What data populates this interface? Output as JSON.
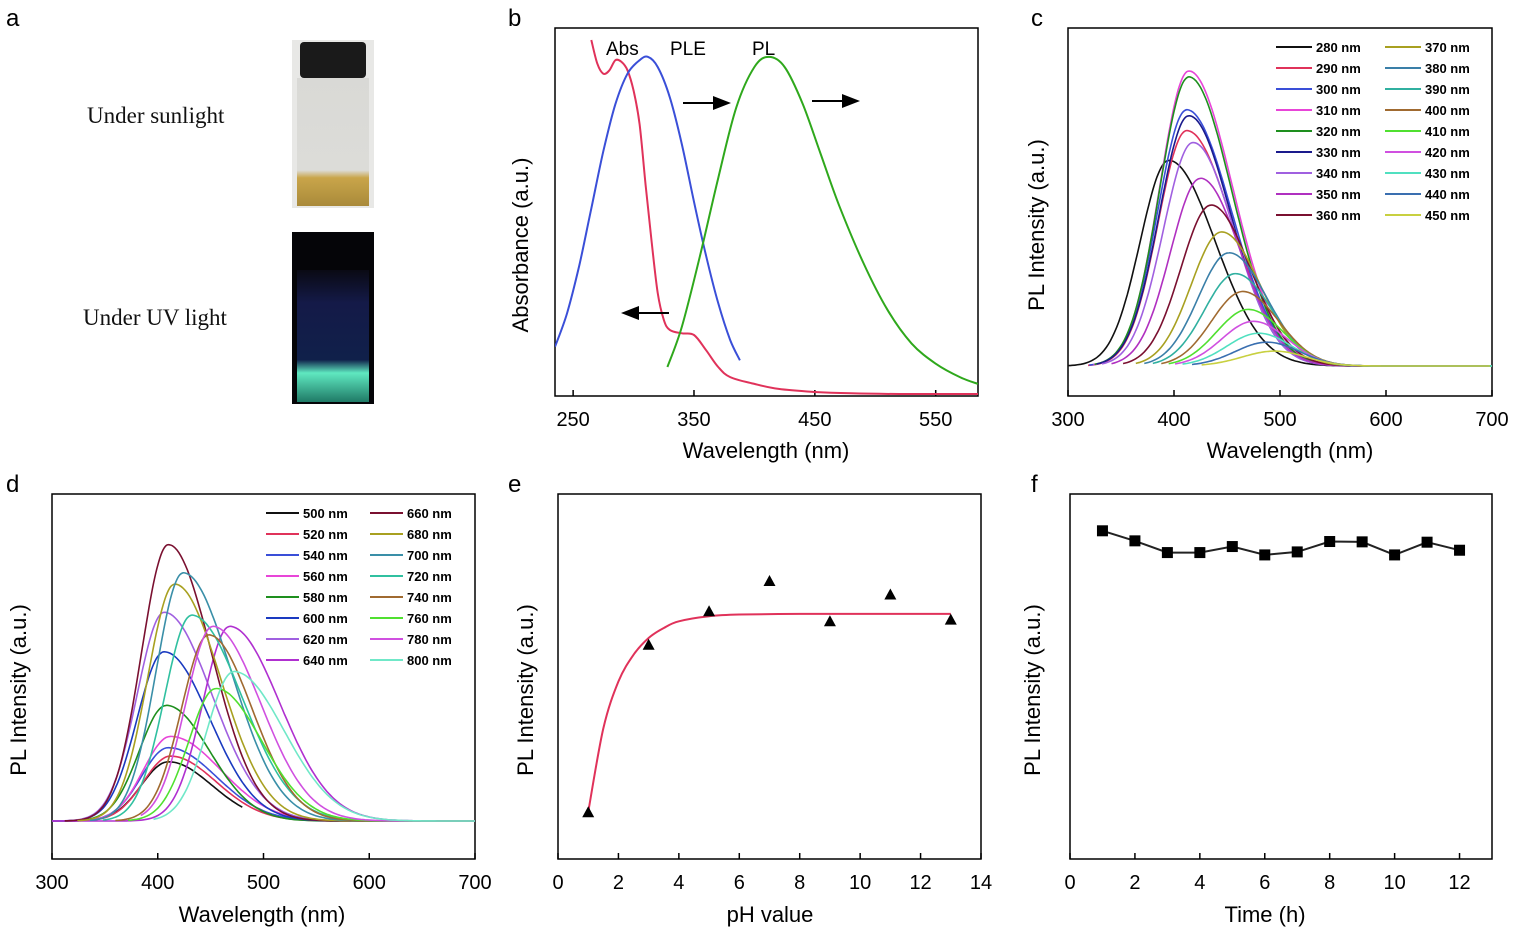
{
  "panel_labels": [
    "a",
    "b",
    "c",
    "d",
    "e",
    "f"
  ],
  "panel_a": {
    "sunlight_label": "Under sunlight",
    "uv_label": "Under UV light"
  },
  "chart_data": [
    {
      "id": "b",
      "type": "line",
      "title": "",
      "xlabel": "Wavelength (nm)",
      "ylabel": "Absorbance (a.u.)",
      "xlim": [
        235,
        585
      ],
      "ylim": [
        0,
        1.05
      ],
      "xticks": [
        250,
        350,
        450,
        550
      ],
      "annotations": [
        "Abs",
        "PLE",
        "PL"
      ],
      "series": [
        {
          "name": "Abs",
          "color": "#e0325a",
          "x": [
            265,
            270,
            275,
            280,
            285,
            290,
            295,
            300,
            305,
            310,
            315,
            320,
            325,
            330,
            340,
            350,
            360,
            370,
            380,
            400,
            420,
            450,
            480,
            520,
            585
          ],
          "y": [
            1.05,
            0.98,
            0.95,
            0.96,
            0.99,
            0.985,
            0.96,
            0.9,
            0.8,
            0.62,
            0.45,
            0.3,
            0.22,
            0.19,
            0.18,
            0.175,
            0.13,
            0.08,
            0.05,
            0.03,
            0.015,
            0.006,
            0.002,
            0.0,
            0.0
          ]
        },
        {
          "name": "PLE",
          "color": "#3a4fd8",
          "x": [
            235,
            245,
            255,
            265,
            275,
            285,
            295,
            305,
            312,
            320,
            330,
            340,
            350,
            360,
            370,
            380,
            388
          ],
          "y": [
            0.14,
            0.24,
            0.38,
            0.55,
            0.72,
            0.86,
            0.95,
            0.99,
            1.0,
            0.97,
            0.88,
            0.74,
            0.57,
            0.41,
            0.27,
            0.16,
            0.1
          ]
        },
        {
          "name": "PL",
          "color": "#2fa81c",
          "x": [
            328,
            340,
            355,
            370,
            385,
            400,
            412,
            425,
            440,
            455,
            470,
            490,
            510,
            530,
            550,
            570,
            585
          ],
          "y": [
            0.08,
            0.2,
            0.41,
            0.64,
            0.85,
            0.97,
            1.0,
            0.97,
            0.86,
            0.71,
            0.56,
            0.39,
            0.25,
            0.15,
            0.09,
            0.05,
            0.03
          ]
        }
      ]
    },
    {
      "id": "c",
      "type": "line",
      "title": "",
      "xlabel": "Wavelength (nm)",
      "ylabel": "PL Intensity (a.u.)",
      "xlim": [
        300,
        700
      ],
      "ylim": [
        0,
        1.0
      ],
      "xticks": [
        300,
        400,
        500,
        600,
        700
      ],
      "legend": "top-right",
      "series": [
        {
          "name": "280 nm",
          "color": "#111111",
          "peak": 395,
          "height": 0.69
        },
        {
          "name": "290 nm",
          "color": "#e0325a",
          "peak": 412,
          "height": 0.79
        },
        {
          "name": "300 nm",
          "color": "#3a4fd8",
          "peak": 412,
          "height": 0.86
        },
        {
          "name": "310 nm",
          "color": "#e845d8",
          "peak": 414,
          "height": 0.99
        },
        {
          "name": "320 nm",
          "color": "#1e8f1e",
          "peak": 414,
          "height": 0.97
        },
        {
          "name": "330 nm",
          "color": "#1a1a8c",
          "peak": 414,
          "height": 0.84
        },
        {
          "name": "340 nm",
          "color": "#a060e0",
          "peak": 418,
          "height": 0.75
        },
        {
          "name": "350 nm",
          "color": "#b030c0",
          "peak": 425,
          "height": 0.63
        },
        {
          "name": "360 nm",
          "color": "#7a1030",
          "peak": 435,
          "height": 0.54
        },
        {
          "name": "370 nm",
          "color": "#a8a020",
          "peak": 445,
          "height": 0.45
        },
        {
          "name": "380 nm",
          "color": "#3a7fa8",
          "peak": 452,
          "height": 0.38
        },
        {
          "name": "390 nm",
          "color": "#30b0a0",
          "peak": 458,
          "height": 0.31
        },
        {
          "name": "400 nm",
          "color": "#a06a30",
          "peak": 465,
          "height": 0.25
        },
        {
          "name": "410 nm",
          "color": "#50e030",
          "peak": 470,
          "height": 0.19
        },
        {
          "name": "420 nm",
          "color": "#d050e0",
          "peak": 475,
          "height": 0.15
        },
        {
          "name": "430 nm",
          "color": "#50e0c0",
          "peak": 480,
          "height": 0.11
        },
        {
          "name": "440 nm",
          "color": "#3a6fb0",
          "peak": 488,
          "height": 0.08
        },
        {
          "name": "450 nm",
          "color": "#c8d040",
          "peak": 495,
          "height": 0.05
        }
      ]
    },
    {
      "id": "d",
      "type": "line",
      "title": "",
      "xlabel": "Wavelength (nm)",
      "ylabel": "PL Intensity (a.u.)",
      "xlim": [
        300,
        700
      ],
      "ylim": [
        0,
        1.0
      ],
      "xticks": [
        300,
        400,
        500,
        600,
        700
      ],
      "legend": "top-right",
      "series": [
        {
          "name": "500 nm",
          "color": "#111111",
          "peak": 410,
          "height": 0.21
        },
        {
          "name": "520 nm",
          "color": "#e0325a",
          "peak": 412,
          "height": 0.23
        },
        {
          "name": "540 nm",
          "color": "#3a4fd8",
          "peak": 410,
          "height": 0.26
        },
        {
          "name": "560 nm",
          "color": "#e845d8",
          "peak": 412,
          "height": 0.3
        },
        {
          "name": "580 nm",
          "color": "#1e8f1e",
          "peak": 408,
          "height": 0.41
        },
        {
          "name": "600 nm",
          "color": "#1a3ac0",
          "peak": 406,
          "height": 0.6
        },
        {
          "name": "620 nm",
          "color": "#a060e0",
          "peak": 406,
          "height": 0.74
        },
        {
          "name": "640 nm",
          "color": "#b030d0",
          "peak": 468,
          "height": 0.69
        },
        {
          "name": "660 nm",
          "color": "#7a1030",
          "peak": 410,
          "height": 0.98
        },
        {
          "name": "680 nm",
          "color": "#a8a020",
          "peak": 416,
          "height": 0.84
        },
        {
          "name": "700 nm",
          "color": "#3a8fa8",
          "peak": 424,
          "height": 0.88
        },
        {
          "name": "720 nm",
          "color": "#30c0a0",
          "peak": 432,
          "height": 0.73
        },
        {
          "name": "740 nm",
          "color": "#a06a30",
          "peak": 448,
          "height": 0.66
        },
        {
          "name": "760 nm",
          "color": "#50e030",
          "peak": 455,
          "height": 0.47
        },
        {
          "name": "780 nm",
          "color": "#d050e0",
          "peak": 452,
          "height": 0.69
        },
        {
          "name": "800 nm",
          "color": "#70e8c8",
          "peak": 472,
          "height": 0.53
        }
      ]
    },
    {
      "id": "e",
      "type": "scatter",
      "title": "",
      "xlabel": "pH value",
      "ylabel": "PL Intensity (a.u.)",
      "xlim": [
        0,
        14
      ],
      "ylim": [
        0,
        1.0
      ],
      "xticks": [
        0,
        2,
        4,
        6,
        8,
        10,
        12,
        14
      ],
      "points": {
        "x": [
          1,
          3,
          5,
          7,
          9,
          11,
          13
        ],
        "y": [
          0.08,
          0.58,
          0.68,
          0.77,
          0.65,
          0.73,
          0.655
        ]
      },
      "fit": {
        "color": "#e0325a",
        "x": [
          1,
          1.5,
          2,
          2.5,
          3,
          3.5,
          4,
          5,
          6,
          8,
          10,
          13
        ],
        "y": [
          0.08,
          0.33,
          0.47,
          0.55,
          0.6,
          0.63,
          0.65,
          0.665,
          0.67,
          0.672,
          0.672,
          0.672
        ]
      }
    },
    {
      "id": "f",
      "type": "line",
      "title": "",
      "xlabel": "Time (h)",
      "ylabel": "PL Intensity (a.u.)",
      "xlim": [
        0,
        13
      ],
      "ylim": [
        0,
        1.0
      ],
      "xticks": [
        0,
        2,
        4,
        6,
        8,
        10,
        12
      ],
      "series": [
        {
          "name": "PL",
          "color": "#222222",
          "x": [
            1,
            2,
            3,
            4,
            5,
            6,
            7,
            8,
            9,
            10,
            11,
            12
          ],
          "y": [
            0.92,
            0.89,
            0.855,
            0.855,
            0.873,
            0.848,
            0.857,
            0.888,
            0.887,
            0.848,
            0.886,
            0.862
          ]
        }
      ]
    }
  ]
}
